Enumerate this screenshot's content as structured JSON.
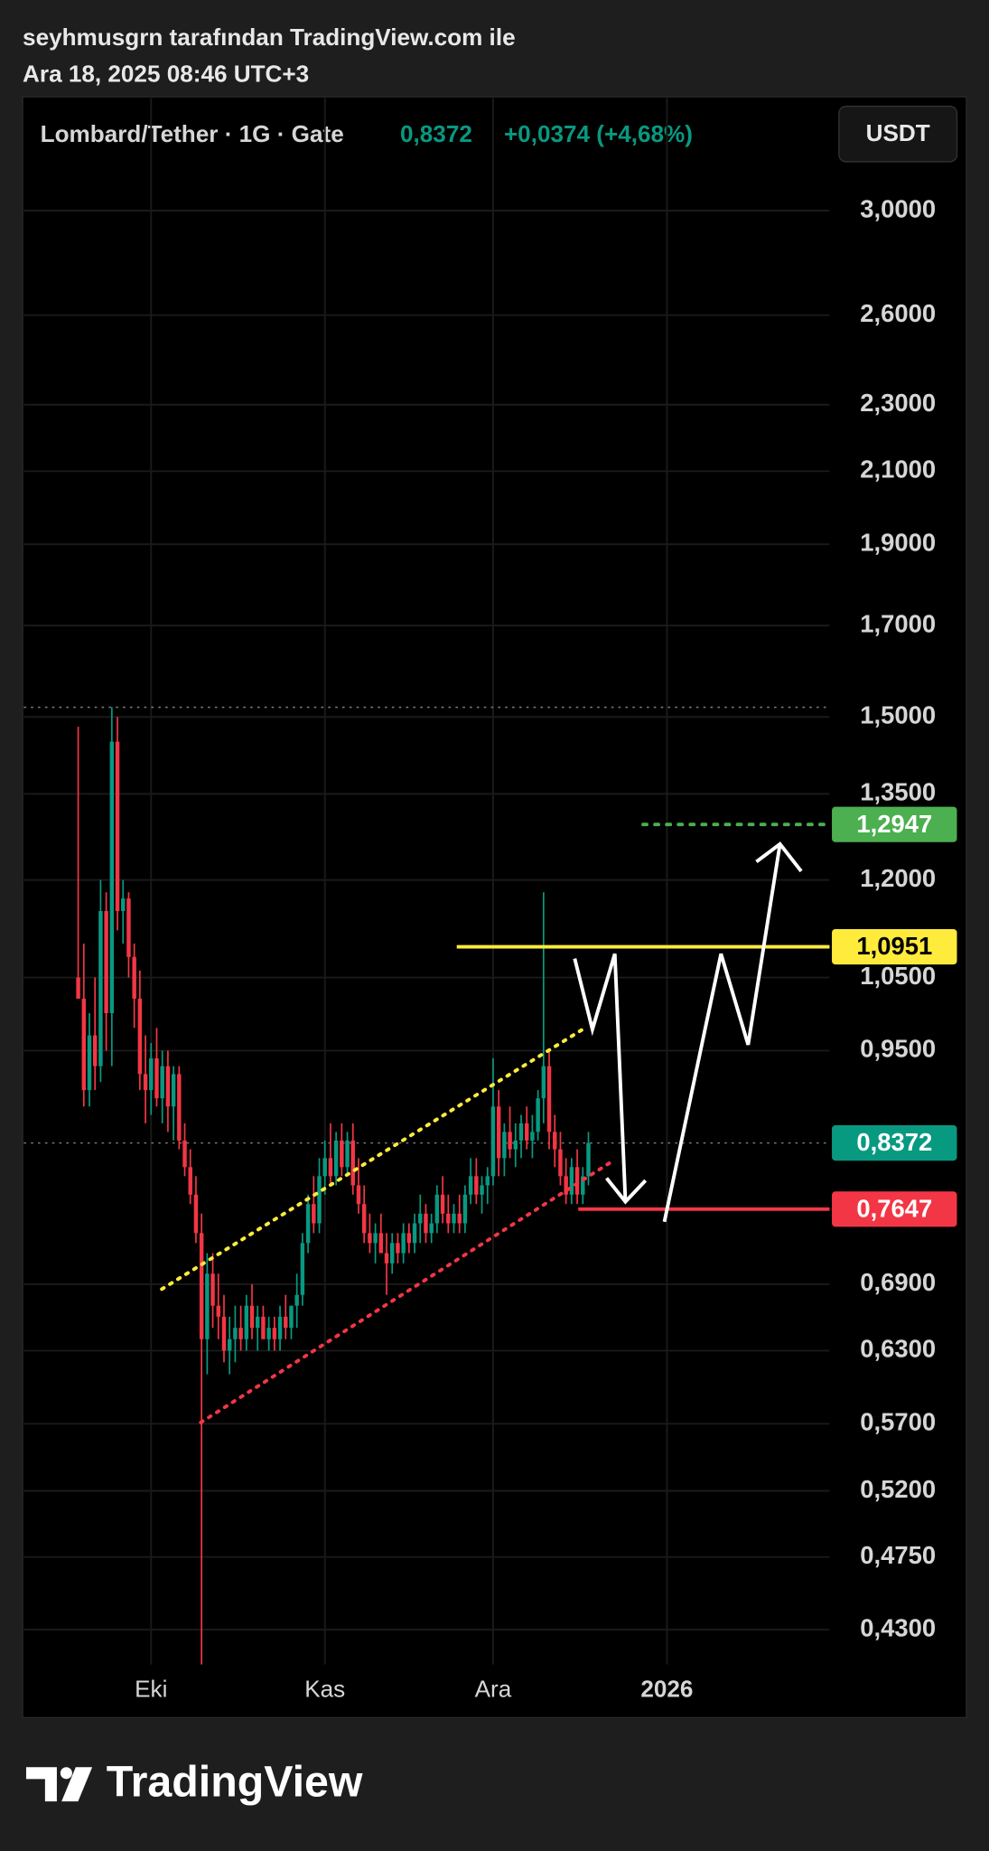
{
  "chart_data": {
    "type": "candlestick",
    "attribution": "seyhmusgrn tarafından TradingView.com ile",
    "timestamp": "Ara 18, 2025 08:46 UTC+3",
    "title": "Lombard/Tether · 1G · Gate",
    "last_price_label": "0,8372",
    "change_label": "+0,0374 (+4,68%)",
    "currency": "USDT",
    "brand": "TradingView",
    "log_scale": true,
    "grid": true,
    "colors": {
      "up": "#089981",
      "down": "#f23645"
    },
    "open": [
      1.05,
      1.02,
      0.9,
      0.97,
      0.93,
      1.15,
      1.0,
      1.45,
      1.15,
      1.17,
      1.08,
      1.02,
      0.92,
      0.9,
      0.94,
      0.89,
      0.93,
      0.88,
      0.92,
      0.84,
      0.81,
      0.78,
      0.74,
      0.64,
      0.7,
      0.67,
      0.66,
      0.63,
      0.64,
      0.65,
      0.64,
      0.67,
      0.65,
      0.66,
      0.64,
      0.65,
      0.64,
      0.66,
      0.65,
      0.67,
      0.68,
      0.73,
      0.77,
      0.75,
      0.8,
      0.82,
      0.8,
      0.84,
      0.81,
      0.84,
      0.79,
      0.77,
      0.74,
      0.73,
      0.74,
      0.72,
      0.71,
      0.73,
      0.72,
      0.74,
      0.73,
      0.75,
      0.76,
      0.74,
      0.75,
      0.78,
      0.76,
      0.75,
      0.76,
      0.75,
      0.78,
      0.8,
      0.78,
      0.79,
      0.8,
      0.88,
      0.82,
      0.85,
      0.83,
      0.84,
      0.86,
      0.84,
      0.85,
      0.89,
      0.93,
      0.85,
      0.83,
      0.8,
      0.78,
      0.81,
      0.78,
      0.7998
    ],
    "high": [
      1.48,
      1.1,
      1.0,
      1.05,
      1.2,
      1.18,
      1.52,
      1.5,
      1.2,
      1.18,
      1.1,
      1.06,
      0.97,
      0.96,
      0.98,
      0.95,
      0.95,
      0.93,
      0.93,
      0.86,
      0.83,
      0.8,
      0.76,
      0.72,
      0.72,
      0.7,
      0.68,
      0.66,
      0.67,
      0.67,
      0.68,
      0.69,
      0.67,
      0.67,
      0.66,
      0.66,
      0.67,
      0.68,
      0.67,
      0.7,
      0.74,
      0.78,
      0.8,
      0.82,
      0.84,
      0.86,
      0.85,
      0.86,
      0.85,
      0.86,
      0.82,
      0.79,
      0.76,
      0.75,
      0.76,
      0.74,
      0.74,
      0.74,
      0.75,
      0.75,
      0.76,
      0.78,
      0.77,
      0.76,
      0.79,
      0.8,
      0.78,
      0.77,
      0.78,
      0.79,
      0.82,
      0.82,
      0.8,
      0.81,
      0.94,
      0.9,
      0.86,
      0.88,
      0.86,
      0.87,
      0.88,
      0.87,
      0.9,
      1.18,
      0.95,
      0.87,
      0.85,
      0.82,
      0.82,
      0.83,
      0.81,
      0.85
    ],
    "low": [
      1.02,
      0.88,
      0.88,
      0.9,
      0.91,
      0.95,
      0.93,
      1.12,
      1.1,
      1.05,
      0.98,
      0.9,
      0.86,
      0.87,
      0.88,
      0.86,
      0.85,
      0.84,
      0.83,
      0.8,
      0.77,
      0.73,
      0.41,
      0.61,
      0.65,
      0.64,
      0.62,
      0.61,
      0.62,
      0.63,
      0.63,
      0.64,
      0.63,
      0.64,
      0.63,
      0.63,
      0.63,
      0.64,
      0.64,
      0.65,
      0.67,
      0.72,
      0.74,
      0.74,
      0.78,
      0.79,
      0.79,
      0.8,
      0.8,
      0.78,
      0.76,
      0.73,
      0.72,
      0.71,
      0.72,
      0.68,
      0.7,
      0.71,
      0.71,
      0.72,
      0.72,
      0.73,
      0.73,
      0.73,
      0.74,
      0.75,
      0.74,
      0.74,
      0.74,
      0.74,
      0.77,
      0.77,
      0.76,
      0.77,
      0.79,
      0.8,
      0.8,
      0.82,
      0.81,
      0.82,
      0.83,
      0.82,
      0.84,
      0.86,
      0.83,
      0.81,
      0.79,
      0.77,
      0.77,
      0.77,
      0.77,
      0.79
    ],
    "close": [
      1.02,
      0.9,
      0.97,
      0.93,
      1.15,
      1.0,
      1.45,
      1.15,
      1.17,
      1.08,
      1.02,
      0.92,
      0.9,
      0.94,
      0.89,
      0.93,
      0.88,
      0.92,
      0.84,
      0.81,
      0.78,
      0.74,
      0.64,
      0.7,
      0.67,
      0.66,
      0.63,
      0.64,
      0.65,
      0.64,
      0.67,
      0.65,
      0.66,
      0.64,
      0.65,
      0.64,
      0.66,
      0.65,
      0.67,
      0.68,
      0.73,
      0.77,
      0.75,
      0.8,
      0.82,
      0.8,
      0.84,
      0.81,
      0.84,
      0.79,
      0.77,
      0.74,
      0.73,
      0.74,
      0.72,
      0.71,
      0.73,
      0.72,
      0.74,
      0.73,
      0.75,
      0.76,
      0.74,
      0.75,
      0.78,
      0.76,
      0.75,
      0.76,
      0.75,
      0.78,
      0.8,
      0.78,
      0.79,
      0.8,
      0.88,
      0.82,
      0.85,
      0.83,
      0.84,
      0.86,
      0.84,
      0.85,
      0.89,
      0.93,
      0.85,
      0.83,
      0.8,
      0.78,
      0.81,
      0.78,
      0.7998,
      0.8372
    ],
    "xlim": [
      -9.7,
      134
    ],
    "xticks": [
      {
        "value": 13,
        "label": "Eki"
      },
      {
        "value": 44,
        "label": "Kas"
      },
      {
        "value": 74,
        "label": "Ara"
      },
      {
        "value": 105,
        "label": "2026"
      }
    ],
    "ylim": [
      0.41,
      3.5
    ],
    "yticks": [
      {
        "value": 3.0,
        "label": "3,0000"
      },
      {
        "value": 2.6,
        "label": "2,6000"
      },
      {
        "value": 2.3,
        "label": "2,3000"
      },
      {
        "value": 2.1,
        "label": "2,1000"
      },
      {
        "value": 1.9,
        "label": "1,9000"
      },
      {
        "value": 1.7,
        "label": "1,7000"
      },
      {
        "value": 1.5,
        "label": "1,5000"
      },
      {
        "value": 1.35,
        "label": "1,3500"
      },
      {
        "value": 1.2,
        "label": "1,2000"
      },
      {
        "value": 1.05,
        "label": "1,0500"
      },
      {
        "value": 0.95,
        "label": "0,9500"
      },
      {
        "value": 0.69,
        "label": "0,6900"
      },
      {
        "value": 0.63,
        "label": "0,6300"
      },
      {
        "value": 0.57,
        "label": "0,5700"
      },
      {
        "value": 0.52,
        "label": "0,5200"
      },
      {
        "value": 0.475,
        "label": "0,4750"
      },
      {
        "value": 0.43,
        "label": "0,4300"
      }
    ],
    "levels": [
      {
        "value": 1.2947,
        "label": "1,2947",
        "color": "#4caf50",
        "text_color": "#ffffff",
        "style": "dotted"
      },
      {
        "value": 1.0951,
        "label": "1,0951",
        "color": "#ffeb3b",
        "text_color": "#000000",
        "style": "solid"
      },
      {
        "value": 0.7647,
        "label": "0,7647",
        "color": "#f23645",
        "text_color": "#ffffff",
        "style": "solid"
      }
    ]
  }
}
